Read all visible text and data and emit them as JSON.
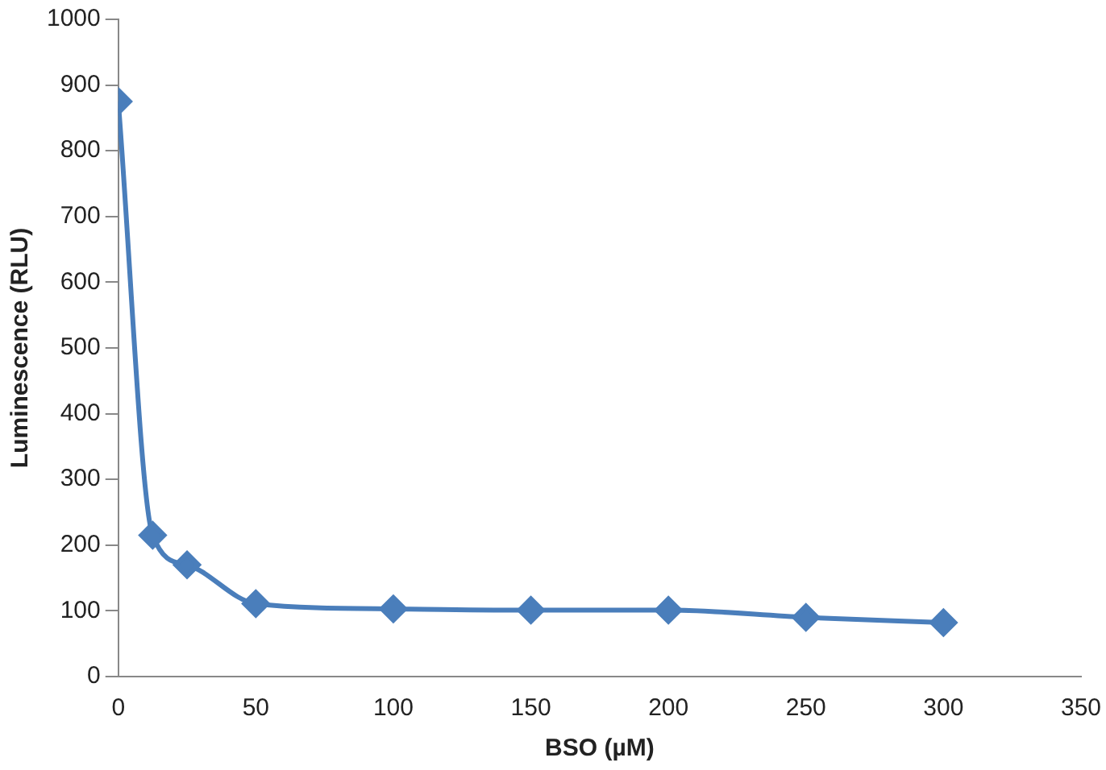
{
  "chart_data": {
    "type": "line",
    "xlabel": "BSO (µM)",
    "ylabel": "Luminescence (RLU)",
    "x": [
      0,
      12.5,
      25,
      50,
      100,
      150,
      200,
      250,
      300
    ],
    "series": [
      {
        "color": "#4a7ebb",
        "values": [
          875,
          215,
          170,
          111,
          103,
          101,
          101,
          90,
          82
        ]
      }
    ],
    "xlim": [
      0,
      350
    ],
    "xticks": [
      0,
      50,
      100,
      150,
      200,
      250,
      300,
      350
    ],
    "ylim": [
      0,
      1000
    ],
    "yticks": [
      0,
      100,
      200,
      300,
      400,
      500,
      600,
      700,
      800,
      900,
      1000
    ],
    "grid": false,
    "legend": false,
    "marker": "diamond",
    "line_style": "solid"
  }
}
